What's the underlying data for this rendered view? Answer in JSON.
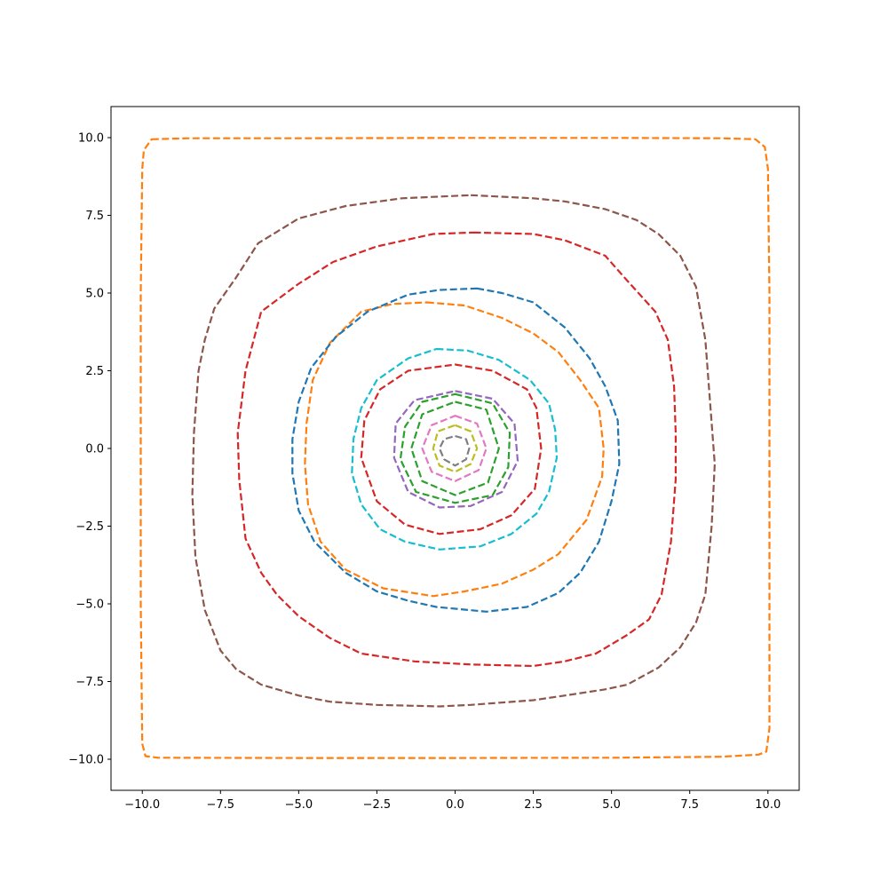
{
  "chart_data": {
    "type": "line",
    "title": "",
    "xlabel": "",
    "ylabel": "",
    "xlim": [
      -11,
      11
    ],
    "ylim": [
      -11,
      11
    ],
    "xticks": [
      -10,
      -7.5,
      -5,
      -2.5,
      0,
      2.5,
      5,
      7.5,
      10
    ],
    "xtick_labels": [
      "−10.0",
      "−7.5",
      "−5.0",
      "−2.5",
      "0.0",
      "2.5",
      "5.0",
      "7.5",
      "10.0"
    ],
    "yticks": [
      10,
      7.5,
      5,
      2.5,
      0,
      -2.5,
      -5,
      -7.5,
      -10
    ],
    "ytick_labels": [
      "10.0",
      "7.5",
      "5.0",
      "2.5",
      "0.0",
      "−2.5",
      "−5.0",
      "−7.5",
      "−10.0"
    ],
    "grid": false,
    "line_style": "dashed",
    "series": [
      {
        "color": "#7f7f7f",
        "points": [
          [
            0,
            0.4
          ],
          [
            0.35,
            0.3
          ],
          [
            0.45,
            0
          ],
          [
            0.35,
            -0.35
          ],
          [
            0,
            -0.55
          ],
          [
            -0.35,
            -0.35
          ],
          [
            -0.5,
            0
          ],
          [
            -0.35,
            0.3
          ]
        ]
      },
      {
        "color": "#bcbd22",
        "points": [
          [
            0,
            0.75
          ],
          [
            0.5,
            0.55
          ],
          [
            0.7,
            0
          ],
          [
            0.5,
            -0.5
          ],
          [
            0,
            -0.75
          ],
          [
            -0.5,
            -0.55
          ],
          [
            -0.7,
            0
          ],
          [
            -0.55,
            0.55
          ]
        ]
      },
      {
        "color": "#e377c2",
        "points": [
          [
            0,
            1.05
          ],
          [
            0.7,
            0.8
          ],
          [
            1.0,
            0
          ],
          [
            0.75,
            -0.7
          ],
          [
            0,
            -1.05
          ],
          [
            -0.75,
            -0.75
          ],
          [
            -1.05,
            0
          ],
          [
            -0.75,
            0.75
          ]
        ]
      },
      {
        "color": "#2ca02c",
        "points": [
          [
            0,
            1.5
          ],
          [
            1.0,
            1.25
          ],
          [
            1.4,
            0
          ],
          [
            1.05,
            -1.1
          ],
          [
            0,
            -1.5
          ],
          [
            -1.05,
            -1.05
          ],
          [
            -1.4,
            0
          ],
          [
            -1.05,
            1.1
          ]
        ]
      },
      {
        "color": "#2ca02c",
        "points": [
          [
            0,
            1.75
          ],
          [
            1.2,
            1.45
          ],
          [
            1.75,
            0.5
          ],
          [
            1.7,
            -0.6
          ],
          [
            1.2,
            -1.5
          ],
          [
            0,
            -1.75
          ],
          [
            -1.25,
            -1.4
          ],
          [
            -1.75,
            -0.35
          ],
          [
            -1.6,
            0.7
          ],
          [
            -1.05,
            1.5
          ]
        ]
      },
      {
        "color": "#9467bd",
        "points": [
          [
            0,
            1.85
          ],
          [
            1.2,
            1.6
          ],
          [
            1.9,
            0.8
          ],
          [
            2.0,
            -0.4
          ],
          [
            1.5,
            -1.4
          ],
          [
            0.5,
            -1.85
          ],
          [
            -0.5,
            -1.9
          ],
          [
            -1.5,
            -1.4
          ],
          [
            -1.95,
            -0.3
          ],
          [
            -1.9,
            0.8
          ],
          [
            -1.3,
            1.55
          ]
        ]
      },
      {
        "color": "#d62728",
        "points": [
          [
            0,
            2.7
          ],
          [
            1.2,
            2.5
          ],
          [
            2.3,
            1.9
          ],
          [
            2.6,
            1.3
          ],
          [
            2.75,
            0
          ],
          [
            2.55,
            -1.3
          ],
          [
            1.8,
            -2.15
          ],
          [
            0.8,
            -2.6
          ],
          [
            -0.5,
            -2.75
          ],
          [
            -1.6,
            -2.45
          ],
          [
            -2.5,
            -1.7
          ],
          [
            -3.0,
            -0.3
          ],
          [
            -2.9,
            0.9
          ],
          [
            -2.4,
            1.9
          ],
          [
            -1.5,
            2.5
          ]
        ]
      },
      {
        "color": "#17becf",
        "points": [
          [
            -0.6,
            3.2
          ],
          [
            0.4,
            3.15
          ],
          [
            1.4,
            2.85
          ],
          [
            2.4,
            2.2
          ],
          [
            3.0,
            1.45
          ],
          [
            3.2,
            0.6
          ],
          [
            3.25,
            -0.3
          ],
          [
            3.0,
            -1.4
          ],
          [
            2.6,
            -2.1
          ],
          [
            1.8,
            -2.75
          ],
          [
            0.8,
            -3.15
          ],
          [
            -0.5,
            -3.25
          ],
          [
            -1.6,
            -3.0
          ],
          [
            -2.4,
            -2.6
          ],
          [
            -3.0,
            -1.8
          ],
          [
            -3.3,
            -0.8
          ],
          [
            -3.25,
            0.3
          ],
          [
            -3.0,
            1.3
          ],
          [
            -2.5,
            2.2
          ],
          [
            -1.5,
            2.9
          ]
        ]
      },
      {
        "color": "#ff7f0e",
        "points": [
          [
            -0.9,
            4.7
          ],
          [
            0.3,
            4.6
          ],
          [
            1.5,
            4.2
          ],
          [
            2.5,
            3.7
          ],
          [
            3.3,
            3.1
          ],
          [
            4.0,
            2.2
          ],
          [
            4.6,
            1.3
          ],
          [
            4.75,
            0
          ],
          [
            4.7,
            -0.9
          ],
          [
            4.2,
            -2.3
          ],
          [
            3.3,
            -3.4
          ],
          [
            2.5,
            -3.9
          ],
          [
            1.5,
            -4.35
          ],
          [
            0.3,
            -4.6
          ],
          [
            -0.7,
            -4.75
          ],
          [
            -2.3,
            -4.5
          ],
          [
            -3.5,
            -3.9
          ],
          [
            -4.3,
            -3.0
          ],
          [
            -4.7,
            -1.8
          ],
          [
            -4.8,
            -0.5
          ],
          [
            -4.75,
            0.8
          ],
          [
            -4.55,
            2.2
          ],
          [
            -4.0,
            3.4
          ],
          [
            -3.0,
            4.4
          ],
          [
            -2.0,
            4.65
          ]
        ]
      },
      {
        "color": "#1f77b4",
        "points": [
          [
            0.7,
            5.15
          ],
          [
            1.5,
            5.0
          ],
          [
            2.5,
            4.7
          ],
          [
            3.5,
            3.9
          ],
          [
            4.3,
            2.9
          ],
          [
            4.8,
            2.0
          ],
          [
            5.2,
            0.9
          ],
          [
            5.25,
            -0.5
          ],
          [
            5.0,
            -1.7
          ],
          [
            4.6,
            -3.0
          ],
          [
            4.0,
            -4.0
          ],
          [
            3.3,
            -4.65
          ],
          [
            2.3,
            -5.1
          ],
          [
            1.0,
            -5.25
          ],
          [
            -0.6,
            -5.1
          ],
          [
            -1.5,
            -4.9
          ],
          [
            -2.5,
            -4.6
          ],
          [
            -3.5,
            -4.0
          ],
          [
            -4.5,
            -3.0
          ],
          [
            -5.0,
            -2.0
          ],
          [
            -5.2,
            -0.8
          ],
          [
            -5.2,
            0.3
          ],
          [
            -5.0,
            1.5
          ],
          [
            -4.6,
            2.6
          ],
          [
            -3.8,
            3.6
          ],
          [
            -2.8,
            4.4
          ],
          [
            -1.5,
            4.95
          ],
          [
            -0.5,
            5.1
          ]
        ]
      },
      {
        "color": "#d62728",
        "points": [
          [
            0.6,
            6.95
          ],
          [
            2.5,
            6.9
          ],
          [
            3.5,
            6.7
          ],
          [
            4.8,
            6.2
          ],
          [
            5.5,
            5.4
          ],
          [
            6.4,
            4.4
          ],
          [
            6.8,
            3.5
          ],
          [
            7.0,
            2.0
          ],
          [
            7.05,
            0.5
          ],
          [
            7.05,
            -1.0
          ],
          [
            6.9,
            -3.0
          ],
          [
            6.6,
            -4.7
          ],
          [
            6.2,
            -5.5
          ],
          [
            5.5,
            -6.0
          ],
          [
            4.5,
            -6.6
          ],
          [
            3.5,
            -6.85
          ],
          [
            2.5,
            -7.0
          ],
          [
            0.5,
            -6.95
          ],
          [
            -1.3,
            -6.85
          ],
          [
            -3.0,
            -6.6
          ],
          [
            -4.0,
            -6.1
          ],
          [
            -5.0,
            -5.4
          ],
          [
            -5.7,
            -4.7
          ],
          [
            -6.2,
            -4.0
          ],
          [
            -6.7,
            -2.9
          ],
          [
            -6.9,
            -1.0
          ],
          [
            -6.95,
            0.5
          ],
          [
            -6.7,
            2.5
          ],
          [
            -6.2,
            4.4
          ],
          [
            -5.0,
            5.3
          ],
          [
            -3.9,
            6.0
          ],
          [
            -2.5,
            6.5
          ],
          [
            -0.7,
            6.9
          ]
        ]
      },
      {
        "color": "#8c564b",
        "points": [
          [
            0.5,
            8.15
          ],
          [
            2.5,
            8.05
          ],
          [
            3.5,
            7.95
          ],
          [
            4.8,
            7.7
          ],
          [
            5.8,
            7.35
          ],
          [
            6.5,
            6.9
          ],
          [
            7.2,
            6.2
          ],
          [
            7.7,
            5.2
          ],
          [
            8.0,
            3.5
          ],
          [
            8.15,
            1.5
          ],
          [
            8.3,
            -0.5
          ],
          [
            8.2,
            -2.5
          ],
          [
            8.0,
            -4.7
          ],
          [
            7.7,
            -5.6
          ],
          [
            7.2,
            -6.4
          ],
          [
            6.5,
            -7.05
          ],
          [
            5.5,
            -7.6
          ],
          [
            4.8,
            -7.75
          ],
          [
            3.5,
            -7.95
          ],
          [
            2.5,
            -8.1
          ],
          [
            0.5,
            -8.25
          ],
          [
            -0.5,
            -8.3
          ],
          [
            -2.5,
            -8.25
          ],
          [
            -4.0,
            -8.15
          ],
          [
            -5.0,
            -7.95
          ],
          [
            -6.2,
            -7.6
          ],
          [
            -7.0,
            -7.1
          ],
          [
            -7.5,
            -6.5
          ],
          [
            -8.0,
            -5.2
          ],
          [
            -8.3,
            -3.5
          ],
          [
            -8.4,
            -1.5
          ],
          [
            -8.35,
            0.5
          ],
          [
            -8.2,
            2.5
          ],
          [
            -8.0,
            3.5
          ],
          [
            -7.7,
            4.5
          ],
          [
            -7.0,
            5.5
          ],
          [
            -6.3,
            6.6
          ],
          [
            -5.0,
            7.4
          ],
          [
            -3.5,
            7.8
          ],
          [
            -1.7,
            8.05
          ]
        ]
      },
      {
        "color": "#ff7f0e",
        "points": [
          [
            -9.7,
            9.95
          ],
          [
            -8.5,
            9.98
          ],
          [
            -5.0,
            9.98
          ],
          [
            0,
            9.99
          ],
          [
            5.0,
            9.99
          ],
          [
            8.5,
            9.98
          ],
          [
            9.6,
            9.95
          ],
          [
            9.9,
            9.7
          ],
          [
            10.0,
            9.0
          ],
          [
            10.05,
            5.0
          ],
          [
            10.05,
            0
          ],
          [
            10.05,
            -5.0
          ],
          [
            10.05,
            -9.0
          ],
          [
            9.95,
            -9.75
          ],
          [
            9.7,
            -9.85
          ],
          [
            8.5,
            -9.92
          ],
          [
            5.0,
            -9.95
          ],
          [
            0,
            -9.96
          ],
          [
            -5.0,
            -9.96
          ],
          [
            -9.5,
            -9.95
          ],
          [
            -9.9,
            -9.9
          ],
          [
            -10.0,
            -9.5
          ],
          [
            -10.05,
            -5.0
          ],
          [
            -10.05,
            0
          ],
          [
            -10.05,
            5.0
          ],
          [
            -10.0,
            9.0
          ],
          [
            -9.95,
            9.6
          ]
        ]
      }
    ]
  }
}
